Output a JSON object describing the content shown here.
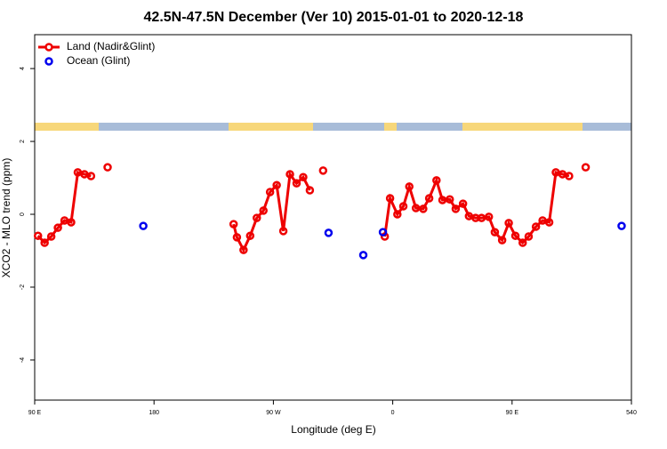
{
  "chart_data": {
    "type": "line",
    "title": "42.5N-47.5N December (Ver 10)   2015-01-01 to 2020-12-18",
    "x_label": "Longitude (deg E)",
    "y_label": "XCO2 - MLO trend (ppm)",
    "xlim": [
      90,
      540
    ],
    "xticks": [
      {
        "value": 90,
        "label": "90 E"
      },
      180,
      {
        "value": 270,
        "label": "90 W"
      },
      {
        "value": 360,
        "label": "0"
      },
      {
        "value": 450,
        "label": "90 E"
      },
      540
    ],
    "ylim": [
      -5.1,
      4.93
    ],
    "yticks": [
      -4,
      -2,
      0,
      2,
      4
    ],
    "legend": "top-left",
    "series": [
      {
        "name": "Land (Nadir&Glint)",
        "color": "#ee0000",
        "lines": true,
        "x": [
          92.5,
          97.5,
          102.5,
          107.5,
          112.5,
          117.5,
          122.5,
          127.5,
          132.5,
          null,
          145,
          null,
          240,
          242.5,
          247.5,
          252.5,
          257.5,
          262.5,
          267.5,
          272.5,
          277.5,
          282.5,
          287.5,
          292.5,
          297.5,
          null,
          307.5,
          null,
          354,
          358,
          363.5,
          368,
          372.5,
          377.5,
          383,
          387.5,
          393,
          397.5,
          403,
          407.5,
          413,
          417.5,
          422.5,
          427,
          432.5,
          437,
          442.5,
          447.5,
          452.5,
          458,
          462.5,
          468,
          473,
          478,
          483,
          488,
          493,
          null,
          505.5
        ],
        "values": [
          -0.59,
          -0.78,
          -0.61,
          -0.37,
          -0.17,
          -0.22,
          1.15,
          1.1,
          1.05,
          null,
          1.29,
          null,
          -0.27,
          -0.63,
          -0.98,
          -0.59,
          -0.1,
          0.1,
          0.61,
          0.8,
          -0.46,
          1.1,
          0.85,
          1.02,
          0.66,
          null,
          1.2,
          null,
          -0.61,
          0.44,
          0,
          0.22,
          0.76,
          0.17,
          0.15,
          0.44,
          0.93,
          0.39,
          0.41,
          0.15,
          0.29,
          -0.05,
          -0.1,
          -0.1,
          -0.07,
          -0.49,
          -0.71,
          -0.24,
          -0.59,
          -0.78,
          -0.61,
          -0.34,
          -0.17,
          -0.22,
          1.15,
          1.1,
          1.05,
          null,
          1.29
        ]
      },
      {
        "name": "Ocean (Glint)",
        "color": "#0000ee",
        "lines": false,
        "x": [
          171.9,
          311.6,
          337.8,
          352.6,
          532.6
        ],
        "values": [
          -0.32,
          -0.51,
          -1.12,
          -0.49,
          -0.32
        ]
      }
    ]
  }
}
